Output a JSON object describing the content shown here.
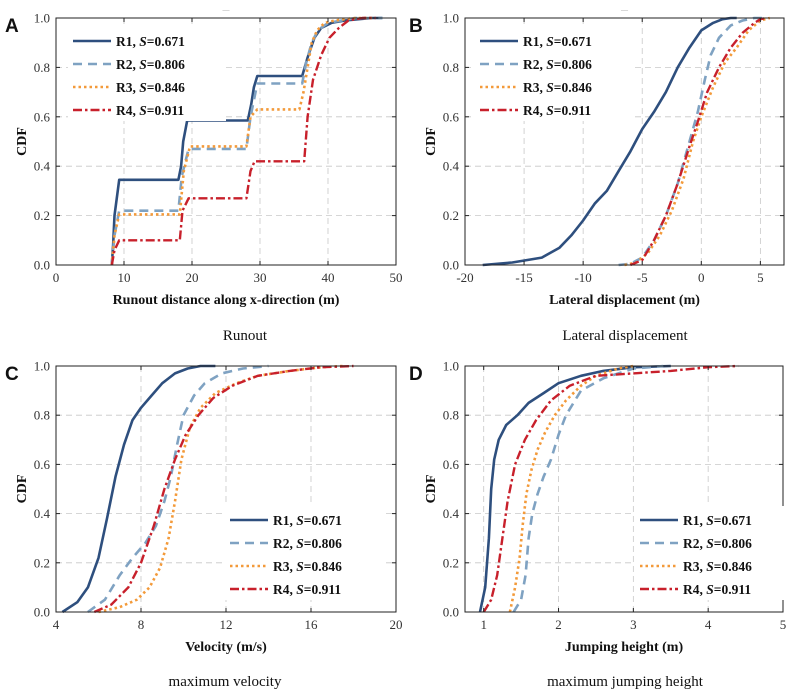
{
  "captions": [
    "Runout",
    "Lateral displacement",
    "maximum velocity",
    "maximum jumping height"
  ],
  "series_styles": [
    {
      "name": "R1",
      "color": "#2e4f7e",
      "dash": "none",
      "width": 2.6
    },
    {
      "name": "R2",
      "color": "#7fa2c2",
      "dash": "9,6",
      "width": 2.6
    },
    {
      "name": "R3",
      "color": "#f39a3a",
      "dash": "2.5,3",
      "width": 2.6
    },
    {
      "name": "R4",
      "color": "#c8202b",
      "dash": "9,3,2.5,3",
      "width": 2.4
    }
  ],
  "chart_data": [
    {
      "letter": "A",
      "type": "line",
      "title": "",
      "subtitle_mark": "––",
      "xlabel": "Runout distance along x-direction (m)",
      "ylabel": "CDF",
      "xlim": [
        0,
        50
      ],
      "ylim": [
        0,
        1
      ],
      "xticks": [
        0,
        10,
        20,
        30,
        40,
        50
      ],
      "yticks": [
        0,
        0.2,
        0.4,
        0.6,
        0.8,
        1.0
      ],
      "xtick_labels": [
        "0",
        "10",
        "20",
        "30",
        "40",
        "50"
      ],
      "ytick_labels": [
        "0.0",
        "0.2",
        "0.4",
        "0.6",
        "0.8",
        "1.0"
      ],
      "legend_position": "top-left",
      "series": [
        {
          "name": "R1",
          "label": "R1, ",
          "s_label": "S",
          "s_value": "=0.671",
          "x": [
            8.2,
            8.4,
            8.6,
            9.3,
            18.0,
            18.4,
            18.7,
            19.3,
            28.2,
            28.7,
            29.1,
            29.6,
            36.2,
            37.0,
            38.0,
            39.0,
            40.5,
            42.5,
            44.5,
            46.5,
            48.0
          ],
          "y": [
            0.0,
            0.08,
            0.2,
            0.345,
            0.345,
            0.4,
            0.5,
            0.585,
            0.585,
            0.65,
            0.72,
            0.765,
            0.765,
            0.84,
            0.92,
            0.96,
            0.98,
            0.99,
            0.995,
            1.0,
            1.0
          ]
        },
        {
          "name": "R2",
          "label": "R2, ",
          "s_label": "S",
          "s_value": "=0.806",
          "x": [
            8.2,
            8.6,
            9.3,
            18.0,
            18.5,
            19.5,
            28.0,
            28.6,
            29.6,
            36.2,
            36.8,
            37.6,
            38.5,
            40.0,
            42.0,
            44.0,
            48.0
          ],
          "y": [
            0.0,
            0.12,
            0.22,
            0.22,
            0.36,
            0.47,
            0.47,
            0.6,
            0.735,
            0.735,
            0.82,
            0.9,
            0.95,
            0.98,
            0.99,
            1.0,
            1.0
          ]
        },
        {
          "name": "R3",
          "label": "R3, ",
          "s_label": "S",
          "s_value": "=0.846",
          "x": [
            8.2,
            8.6,
            9.3,
            18.2,
            18.8,
            19.7,
            28.0,
            28.6,
            29.6,
            35.8,
            36.4,
            37.0,
            37.6,
            38.4,
            39.5,
            41.0,
            42.5,
            44.0,
            47.0
          ],
          "y": [
            0.0,
            0.12,
            0.205,
            0.205,
            0.38,
            0.48,
            0.48,
            0.6,
            0.63,
            0.63,
            0.7,
            0.8,
            0.9,
            0.95,
            0.98,
            0.99,
            0.995,
            1.0,
            1.0
          ]
        },
        {
          "name": "R4",
          "label": "R4, ",
          "s_label": "S",
          "s_value": "=0.911",
          "x": [
            8.2,
            8.6,
            9.3,
            18.2,
            18.6,
            19.5,
            28.0,
            28.6,
            29.2,
            36.5,
            37.0,
            37.8,
            39.0,
            40.2,
            41.6,
            43.0,
            45.0,
            47.0
          ],
          "y": [
            0.0,
            0.06,
            0.1,
            0.1,
            0.22,
            0.27,
            0.27,
            0.38,
            0.42,
            0.42,
            0.6,
            0.75,
            0.85,
            0.92,
            0.96,
            0.99,
            1.0,
            1.0
          ]
        }
      ]
    },
    {
      "letter": "B",
      "type": "line",
      "title": "",
      "subtitle_mark": "––",
      "xlabel": "Lateral displacement (m)",
      "ylabel": "CDF",
      "xlim": [
        -20,
        7
      ],
      "ylim": [
        0,
        1
      ],
      "xticks": [
        -20,
        -15,
        -10,
        -5,
        0,
        5
      ],
      "yticks": [
        0,
        0.2,
        0.4,
        0.6,
        0.8,
        1.0
      ],
      "xtick_labels": [
        "-20",
        "-15",
        "-10",
        "-5",
        "0",
        "5"
      ],
      "ytick_labels": [
        "0.0",
        "0.2",
        "0.4",
        "0.6",
        "0.8",
        "1.0"
      ],
      "legend_position": "top-left",
      "series": [
        {
          "name": "R1",
          "label": "R1, ",
          "s_label": "S",
          "s_value": "=0.671",
          "x": [
            -18.5,
            -16.0,
            -13.5,
            -12.0,
            -11.0,
            -10.0,
            -9.0,
            -8.0,
            -7.0,
            -6.0,
            -5.0,
            -4.0,
            -3.0,
            -2.0,
            -1.0,
            0.0,
            1.0,
            1.8,
            2.5,
            3.0
          ],
          "y": [
            0.0,
            0.01,
            0.03,
            0.07,
            0.12,
            0.18,
            0.25,
            0.3,
            0.38,
            0.46,
            0.55,
            0.62,
            0.7,
            0.8,
            0.88,
            0.95,
            0.98,
            0.995,
            1.0,
            1.0
          ]
        },
        {
          "name": "R2",
          "label": "R2, ",
          "s_label": "S",
          "s_value": "=0.806",
          "x": [
            -7.0,
            -6.0,
            -5.0,
            -4.0,
            -3.0,
            -2.0,
            -1.0,
            -0.3,
            0.3,
            0.8,
            1.5,
            2.5,
            3.5,
            4.5,
            5.5
          ],
          "y": [
            0.0,
            0.005,
            0.03,
            0.1,
            0.2,
            0.33,
            0.5,
            0.62,
            0.75,
            0.85,
            0.92,
            0.97,
            0.99,
            1.0,
            1.0
          ]
        },
        {
          "name": "R3",
          "label": "R3, ",
          "s_label": "S",
          "s_value": "=0.846",
          "x": [
            -6.5,
            -5.5,
            -4.5,
            -3.5,
            -2.5,
            -1.5,
            -0.7,
            0.0,
            1.0,
            2.0,
            3.0,
            4.0,
            5.0,
            5.8
          ],
          "y": [
            0.0,
            0.01,
            0.05,
            0.12,
            0.22,
            0.35,
            0.5,
            0.6,
            0.72,
            0.82,
            0.88,
            0.95,
            0.99,
            1.0
          ]
        },
        {
          "name": "R4",
          "label": "R4, ",
          "s_label": "S",
          "s_value": "=0.911",
          "x": [
            -6.0,
            -5.0,
            -4.0,
            -3.0,
            -2.0,
            -1.0,
            -0.3,
            0.5,
            1.5,
            2.5,
            3.5,
            4.5,
            5.0,
            5.5
          ],
          "y": [
            0.0,
            0.02,
            0.1,
            0.2,
            0.33,
            0.48,
            0.58,
            0.7,
            0.8,
            0.88,
            0.94,
            0.98,
            0.995,
            1.0
          ]
        }
      ]
    },
    {
      "letter": "C",
      "type": "line",
      "title": "",
      "xlabel": "Velocity (m/s)",
      "ylabel": "CDF",
      "xlim": [
        4,
        20
      ],
      "ylim": [
        0,
        1
      ],
      "xticks": [
        4,
        8,
        12,
        16,
        20
      ],
      "yticks": [
        0,
        0.2,
        0.4,
        0.6,
        0.8,
        1.0
      ],
      "xtick_labels": [
        "4",
        "8",
        "12",
        "16",
        "20"
      ],
      "ytick_labels": [
        "0.0",
        "0.2",
        "0.4",
        "0.6",
        "0.8",
        "1.0"
      ],
      "legend_position": "bottom-right",
      "series": [
        {
          "name": "R1",
          "label": "R1, ",
          "s_label": "S",
          "s_value": "=0.671",
          "x": [
            4.3,
            5.0,
            5.5,
            6.0,
            6.4,
            6.8,
            7.2,
            7.6,
            8.0,
            8.5,
            9.0,
            9.6,
            10.2,
            10.8,
            11.5
          ],
          "y": [
            0.0,
            0.04,
            0.1,
            0.22,
            0.38,
            0.55,
            0.68,
            0.78,
            0.83,
            0.88,
            0.93,
            0.97,
            0.99,
            1.0,
            1.0
          ]
        },
        {
          "name": "R2",
          "label": "R2, ",
          "s_label": "S",
          "s_value": "=0.806",
          "x": [
            5.5,
            6.3,
            7.0,
            7.6,
            8.2,
            8.7,
            9.1,
            9.4,
            9.7,
            10.0,
            10.5,
            11.0,
            11.8,
            12.8,
            14.0
          ],
          "y": [
            0.0,
            0.05,
            0.15,
            0.22,
            0.28,
            0.35,
            0.45,
            0.55,
            0.68,
            0.8,
            0.88,
            0.93,
            0.97,
            0.99,
            1.0
          ]
        },
        {
          "name": "R3",
          "label": "R3, ",
          "s_label": "S",
          "s_value": "=0.846",
          "x": [
            6.0,
            7.0,
            7.8,
            8.4,
            8.9,
            9.3,
            9.6,
            9.9,
            10.3,
            10.8,
            11.5,
            12.5,
            13.5,
            15.0,
            16.5,
            17.5
          ],
          "y": [
            0.0,
            0.02,
            0.05,
            0.1,
            0.18,
            0.3,
            0.45,
            0.62,
            0.75,
            0.83,
            0.89,
            0.93,
            0.96,
            0.98,
            0.995,
            1.0
          ]
        },
        {
          "name": "R4",
          "label": "R4, ",
          "s_label": "S",
          "s_value": "=0.911",
          "x": [
            5.8,
            6.6,
            7.4,
            8.0,
            8.6,
            9.1,
            9.6,
            10.1,
            10.7,
            11.4,
            12.3,
            13.5,
            15.0,
            16.5,
            18.0
          ],
          "y": [
            0.0,
            0.03,
            0.1,
            0.2,
            0.35,
            0.5,
            0.62,
            0.72,
            0.8,
            0.87,
            0.92,
            0.96,
            0.98,
            0.995,
            1.0
          ]
        }
      ]
    },
    {
      "letter": "D",
      "type": "line",
      "title": "",
      "xlabel": "Jumping height (m)",
      "ylabel": "CDF",
      "xlim": [
        0.75,
        5
      ],
      "ylim": [
        0,
        1
      ],
      "xticks": [
        1,
        2,
        3,
        4,
        5
      ],
      "yticks": [
        0,
        0.2,
        0.4,
        0.6,
        0.8,
        1.0
      ],
      "xtick_labels": [
        "1",
        "2",
        "3",
        "4",
        "5"
      ],
      "ytick_labels": [
        "0.0",
        "0.2",
        "0.4",
        "0.6",
        "0.8",
        "1.0"
      ],
      "legend_position": "bottom-right",
      "series": [
        {
          "name": "R1",
          "label": "R1, ",
          "s_label": "S",
          "s_value": "=0.671",
          "x": [
            0.95,
            1.02,
            1.07,
            1.1,
            1.14,
            1.2,
            1.3,
            1.45,
            1.6,
            1.8,
            2.0,
            2.3,
            2.6,
            3.0,
            3.5
          ],
          "y": [
            0.0,
            0.1,
            0.3,
            0.5,
            0.62,
            0.7,
            0.76,
            0.8,
            0.85,
            0.89,
            0.93,
            0.96,
            0.98,
            0.995,
            1.0
          ]
        },
        {
          "name": "R2",
          "label": "R2, ",
          "s_label": "S",
          "s_value": "=0.806",
          "x": [
            1.4,
            1.5,
            1.56,
            1.6,
            1.65,
            1.72,
            1.8,
            1.9,
            2.0,
            2.1,
            2.3,
            2.6,
            3.0,
            3.4
          ],
          "y": [
            0.0,
            0.05,
            0.15,
            0.3,
            0.4,
            0.48,
            0.55,
            0.62,
            0.72,
            0.8,
            0.9,
            0.95,
            0.99,
            1.0
          ]
        },
        {
          "name": "R3",
          "label": "R3, ",
          "s_label": "S",
          "s_value": "=0.846",
          "x": [
            1.35,
            1.42,
            1.48,
            1.52,
            1.57,
            1.64,
            1.72,
            1.82,
            1.95,
            2.1,
            2.3,
            2.5,
            2.8,
            3.0
          ],
          "y": [
            0.0,
            0.1,
            0.22,
            0.35,
            0.48,
            0.58,
            0.66,
            0.73,
            0.8,
            0.86,
            0.92,
            0.96,
            0.99,
            1.0
          ]
        },
        {
          "name": "R4",
          "label": "R4, ",
          "s_label": "S",
          "s_value": "=0.911",
          "x": [
            1.0,
            1.1,
            1.18,
            1.25,
            1.32,
            1.42,
            1.55,
            1.7,
            1.9,
            2.15,
            2.5,
            3.0,
            3.5,
            4.0,
            4.4
          ],
          "y": [
            0.0,
            0.05,
            0.15,
            0.3,
            0.45,
            0.6,
            0.7,
            0.78,
            0.86,
            0.92,
            0.96,
            0.97,
            0.98,
            0.995,
            1.0
          ]
        }
      ]
    }
  ]
}
